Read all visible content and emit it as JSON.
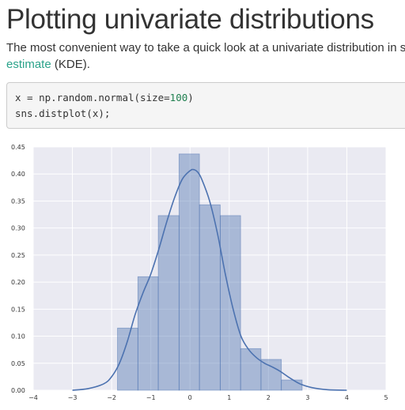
{
  "page": {
    "title": "Plotting univariate distributions",
    "intro_line1": "The most convenient way to take a quick look at a univariate distribution in se",
    "intro_link": "estimate",
    "intro_after_link": " (KDE)."
  },
  "code": {
    "line1_prefix": "x = np.random.normal(size=",
    "line1_number": "100",
    "line1_suffix": ")",
    "line2": "sns.distplot(x);"
  },
  "colors": {
    "plot_background": "#eaeaf2",
    "grid": "#ffffff",
    "hist_fill": "#4c72b0",
    "kde_line": "#4c72b0",
    "link": "#2aa38a"
  },
  "chart_data": {
    "type": "bar",
    "title": "",
    "xlabel": "",
    "ylabel": "",
    "xlim": [
      -4,
      5
    ],
    "ylim": [
      0,
      0.45
    ],
    "xticks": [
      "−4",
      "−3",
      "−2",
      "−1",
      "0",
      "1",
      "2",
      "3",
      "4",
      "5"
    ],
    "yticks": [
      "0.00",
      "0.05",
      "0.10",
      "0.15",
      "0.20",
      "0.25",
      "0.30",
      "0.35",
      "0.40",
      "0.45"
    ],
    "grid": true,
    "series": [
      {
        "kind": "histogram",
        "bins": [
          {
            "x0": -1.85,
            "x1": -1.33,
            "value": 0.115
          },
          {
            "x0": -1.33,
            "x1": -0.81,
            "value": 0.21
          },
          {
            "x0": -0.81,
            "x1": -0.28,
            "value": 0.323
          },
          {
            "x0": -0.28,
            "x1": 0.24,
            "value": 0.437
          },
          {
            "x0": 0.24,
            "x1": 0.77,
            "value": 0.343
          },
          {
            "x0": 0.77,
            "x1": 1.29,
            "value": 0.323
          },
          {
            "x0": 1.29,
            "x1": 1.81,
            "value": 0.077
          },
          {
            "x0": 1.81,
            "x1": 2.33,
            "value": 0.057
          },
          {
            "x0": 2.33,
            "x1": 2.86,
            "value": 0.019
          }
        ]
      },
      {
        "kind": "kde",
        "x": [
          -3.0,
          -2.6,
          -2.2,
          -2.0,
          -1.8,
          -1.6,
          -1.4,
          -1.2,
          -1.0,
          -0.8,
          -0.6,
          -0.4,
          -0.2,
          0.0,
          0.1,
          0.2,
          0.3,
          0.5,
          0.7,
          0.9,
          1.1,
          1.3,
          1.5,
          1.7,
          1.9,
          2.1,
          2.3,
          2.5,
          2.8,
          3.1,
          3.5,
          4.0
        ],
        "y": [
          0.0,
          0.003,
          0.012,
          0.025,
          0.05,
          0.09,
          0.14,
          0.18,
          0.215,
          0.26,
          0.31,
          0.355,
          0.39,
          0.406,
          0.408,
          0.403,
          0.39,
          0.35,
          0.29,
          0.215,
          0.15,
          0.1,
          0.075,
          0.06,
          0.05,
          0.043,
          0.035,
          0.025,
          0.012,
          0.005,
          0.001,
          0.0
        ]
      }
    ]
  }
}
